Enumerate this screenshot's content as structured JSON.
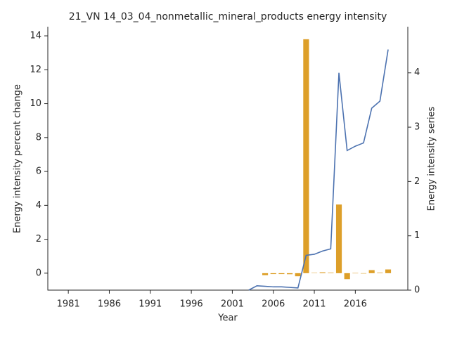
{
  "chart_data": {
    "type": "combo",
    "title": "21_VN 14_03_04_nonmetallic_mineral_products energy intensity",
    "x_label": "Year",
    "y_label": "Energy intensity percent change",
    "y2_label": "Energy intensity series",
    "x": [
      2003,
      2004,
      2005,
      2006,
      2007,
      2008,
      2009,
      2010,
      2011,
      2012,
      2013,
      2014,
      2015,
      2016,
      2017,
      2018,
      2019,
      2020
    ],
    "series": [
      {
        "type": "bar",
        "color": "#dd9f29",
        "axis": "y",
        "values": [
          null,
          null,
          -0.12,
          -0.05,
          -0.05,
          -0.06,
          -0.18,
          13.8,
          0.02,
          0.05,
          0.03,
          4.05,
          -0.35,
          0.01,
          -0.02,
          0.18,
          0.03,
          0.22
        ]
      },
      {
        "type": "line",
        "color": "#4c72b0",
        "axis": "y2",
        "values": [
          0.0,
          0.08,
          0.07,
          0.06,
          0.06,
          0.05,
          0.04,
          0.64,
          0.66,
          0.72,
          0.76,
          4.0,
          2.57,
          2.65,
          2.71,
          3.35,
          3.48,
          4.43
        ]
      }
    ],
    "xlim": [
      1978.5,
      2022.4
    ],
    "xticks": [
      1981,
      1986,
      1991,
      1996,
      2001,
      2006,
      2011,
      2016
    ],
    "ylim": [
      -1,
      14.54
    ],
    "yticks": [
      0,
      2,
      4,
      6,
      8,
      10,
      12,
      14
    ],
    "y2lim": [
      0,
      4.85
    ],
    "y2ticks": [
      0,
      1,
      2,
      3,
      4
    ]
  }
}
